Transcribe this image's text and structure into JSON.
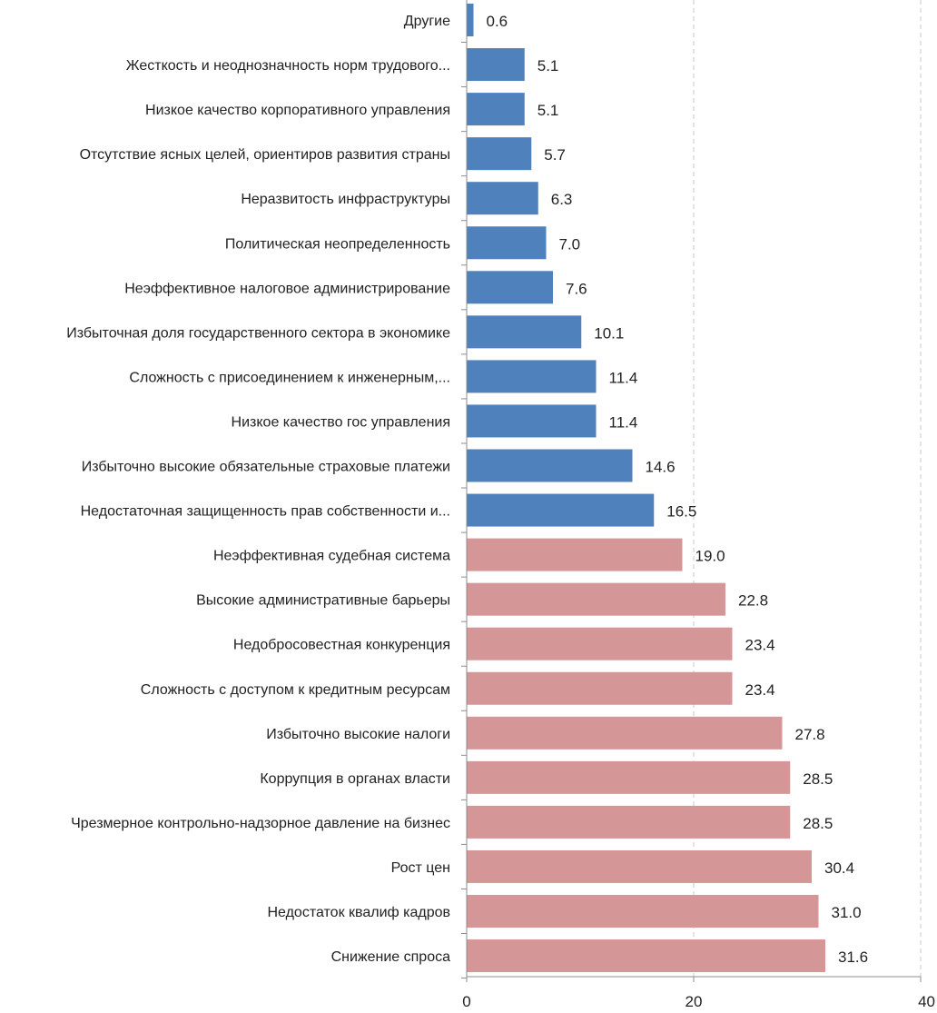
{
  "chart_data": {
    "type": "bar",
    "orientation": "horizontal",
    "title": "",
    "xlabel": "",
    "ylabel": "",
    "xlim": [
      0,
      40
    ],
    "x_ticks": [
      0,
      20,
      40
    ],
    "grid": "vertical dashed",
    "categories": [
      "Другие",
      "Жесткость и неоднозначность норм трудового...",
      "Низкое качество корпоративного управления",
      "Отсутствие ясных целей, ориентиров развития страны",
      "Неразвитость инфраструктуры",
      "Политическая неопределенность",
      "Неэффективное налоговое администрирование",
      "Избыточная доля государственного сектора в экономике",
      "Сложность с присоединением к инженерным,...",
      "Низкое качество гос управления",
      "Избыточно высокие обязательные страховые платежи",
      "Недостаточная защищенность прав собственности и...",
      "Неэффективная судебная система",
      "Высокие административные барьеры",
      "Недобросовестная конкуренция",
      "Сложность с доступом к кредитным ресурсам",
      "Избыточно высокие налоги",
      "Коррупция в органах власти",
      "Чрезмерное контрольно-надзорное давление на бизнес",
      "Рост цен",
      "Недостаток квалиф кадров",
      "Снижение спроса"
    ],
    "values": [
      0.6,
      5.1,
      5.1,
      5.7,
      6.3,
      7.0,
      7.6,
      10.1,
      11.4,
      11.4,
      14.6,
      16.5,
      19.0,
      22.8,
      23.4,
      23.4,
      27.8,
      28.5,
      28.5,
      30.4,
      31.0,
      31.6
    ],
    "value_labels": [
      "0.6",
      "5.1",
      "5.1",
      "5.7",
      "6.3",
      "7.0",
      "7.6",
      "10.1",
      "11.4",
      "11.4",
      "14.6",
      "16.5",
      "19.0",
      "22.8",
      "23.4",
      "23.4",
      "27.8",
      "28.5",
      "28.5",
      "30.4",
      "31.0",
      "31.6"
    ],
    "bar_groups": [
      "blue",
      "blue",
      "blue",
      "blue",
      "blue",
      "blue",
      "blue",
      "blue",
      "blue",
      "blue",
      "blue",
      "blue",
      "pink",
      "pink",
      "pink",
      "pink",
      "pink",
      "pink",
      "pink",
      "pink",
      "pink",
      "pink"
    ],
    "colors": {
      "blue": "#4f81bd",
      "pink": "#d49696",
      "axis": "#8c8c8c",
      "grid": "#c8c8c8"
    }
  }
}
